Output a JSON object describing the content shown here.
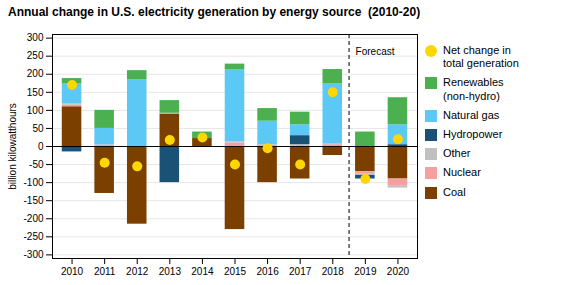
{
  "chart_data": {
    "type": "bar",
    "stacked": true,
    "title": "Annual change in U.S. electricity generation by energy source  (2010-20)",
    "ylabel": "billion kilowatthours",
    "categories": [
      "2010",
      "2011",
      "2012",
      "2013",
      "2014",
      "2015",
      "2016",
      "2017",
      "2018",
      "2019",
      "2020"
    ],
    "series": [
      {
        "name": "Coal",
        "color": "#7B3F00",
        "values": [
          110,
          -130,
          -215,
          90,
          22,
          -230,
          -100,
          -90,
          -25,
          -70,
          -90
        ]
      },
      {
        "name": "Nuclear",
        "color": "#F4A0A0",
        "values": [
          5,
          0,
          0,
          0,
          0,
          10,
          0,
          0,
          5,
          -5,
          -20
        ]
      },
      {
        "name": "Other",
        "color": "#C0C0C0",
        "values": [
          3,
          5,
          0,
          2,
          0,
          3,
          5,
          5,
          3,
          -5,
          -5
        ]
      },
      {
        "name": "Hydropower",
        "color": "#1A5276",
        "values": [
          -15,
          0,
          0,
          -100,
          0,
          0,
          0,
          25,
          0,
          -10,
          5
        ]
      },
      {
        "name": "Natural gas",
        "color": "#5BC8F5",
        "values": [
          55,
          45,
          185,
          0,
          0,
          200,
          65,
          30,
          165,
          0,
          55
        ]
      },
      {
        "name": "Renewables\n(non-hydro)",
        "color": "#4CAF50",
        "values": [
          15,
          50,
          25,
          35,
          18,
          15,
          35,
          35,
          40,
          40,
          75
        ]
      },
      {
        "name": "Net change in\ntotal generation",
        "type": "scatter",
        "marker": "o",
        "color": "#FFD700",
        "values": [
          170,
          -45,
          -55,
          18,
          25,
          -50,
          -5,
          -50,
          150,
          -90,
          20
        ]
      }
    ],
    "ylim": [
      -310,
      310
    ],
    "yticks": [
      -300,
      -250,
      -200,
      -150,
      -100,
      -50,
      0,
      50,
      100,
      150,
      200,
      250,
      300
    ],
    "grid": true,
    "legend": "right",
    "annotations": [
      {
        "text": "Forecast",
        "x": "2019",
        "line_style": "dashed"
      }
    ]
  }
}
